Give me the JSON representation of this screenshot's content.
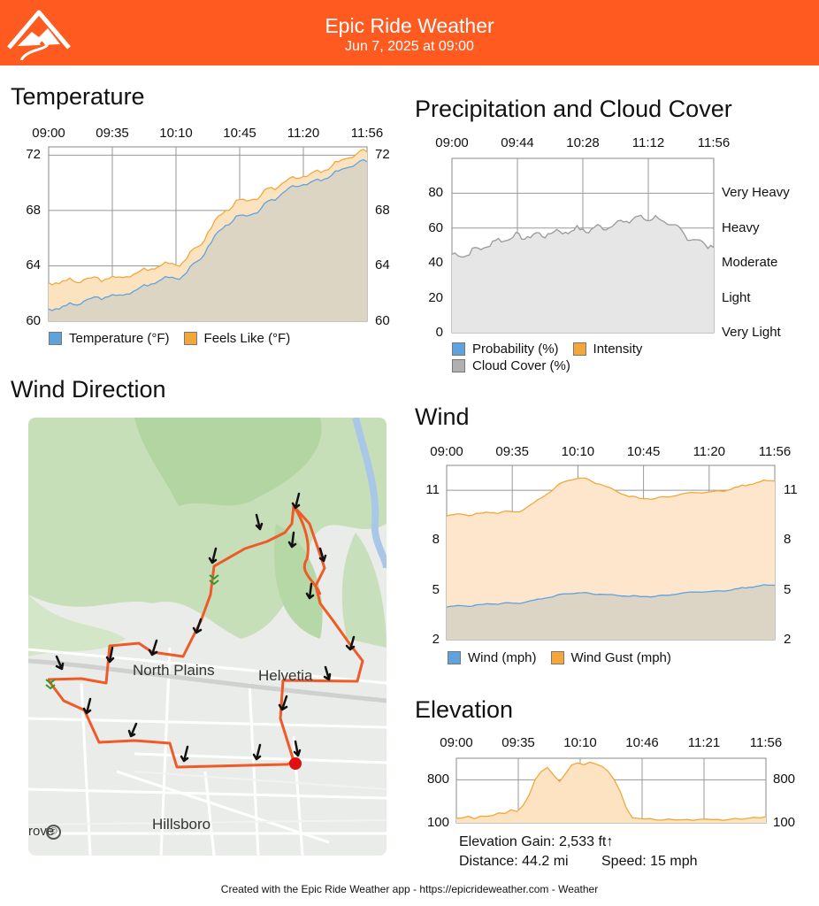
{
  "header": {
    "title": "Epic Ride Weather",
    "subtitle": "Jun 7, 2025 at 09:00",
    "bg": "#ff5a1f",
    "logo_icon": "mountain-road-logo"
  },
  "sections": {
    "temperature": "Temperature",
    "precip": "Precipitation and Cloud Cover",
    "wind_dir": "Wind Direction",
    "wind": "Wind",
    "elevation": "Elevation"
  },
  "temperature": {
    "times": [
      "09:00",
      "09:35",
      "10:10",
      "10:45",
      "11:20",
      "11:56"
    ],
    "yticks": [
      "72",
      "68",
      "64",
      "60"
    ],
    "legend": [
      "Temperature (°F)",
      "Feels Like (°F)"
    ],
    "colors": {
      "temp": "#5fa3dd",
      "feels": "#f4a63a"
    }
  },
  "precip": {
    "times": [
      "09:00",
      "09:44",
      "10:28",
      "11:12",
      "11:56"
    ],
    "yticks": [
      "80",
      "60",
      "40",
      "20",
      "0"
    ],
    "intensity_labels": [
      "Very Heavy",
      "Heavy",
      "Moderate",
      "Light",
      "Very Light"
    ],
    "legend": [
      "Probability (%)",
      "Intensity",
      "Cloud Cover (%)"
    ],
    "colors": {
      "prob": "#5fa3dd",
      "intensity": "#f4a63a",
      "cloud": "#b0b0b0"
    }
  },
  "wind": {
    "times": [
      "09:00",
      "09:35",
      "10:10",
      "10:45",
      "11:20",
      "11:56"
    ],
    "yticks": [
      "11",
      "8",
      "5",
      "2"
    ],
    "legend": [
      "Wind (mph)",
      "Wind Gust (mph)"
    ]
  },
  "elevation": {
    "times": [
      "09:00",
      "09:35",
      "10:10",
      "10:46",
      "11:21",
      "11:56"
    ],
    "yticks": [
      "800",
      "100"
    ],
    "gain": "Elevation Gain: 2,533 ft↑",
    "distance": "Distance: 44.2 mi",
    "speed": "Speed: 15 mph"
  },
  "map": {
    "labels": [
      "North Plains",
      "Helvetia",
      "Hillsboro",
      "rove"
    ],
    "route_color": "#ef5a28",
    "end_color": "#e01010"
  },
  "footer": "Created with the Epic Ride Weather app - https://epicrideweather.com -  Weather",
  "chart_data": [
    {
      "type": "area",
      "title": "Temperature",
      "ylim": [
        60,
        72.6
      ],
      "x": [
        "09:00",
        "09:35",
        "10:10",
        "10:45",
        "11:20",
        "11:56"
      ],
      "series": [
        {
          "name": "Temperature (°F)",
          "values": [
            60.9,
            61.8,
            63.2,
            67.5,
            69.9,
            71.5
          ]
        },
        {
          "name": "Feels Like (°F)",
          "values": [
            62.8,
            63.1,
            64.2,
            68.6,
            70.5,
            72.2
          ]
        }
      ]
    },
    {
      "type": "area",
      "title": "Precipitation and Cloud Cover",
      "ylim": [
        0,
        100
      ],
      "x": [
        "09:00",
        "09:44",
        "10:28",
        "11:12",
        "11:56"
      ],
      "series": [
        {
          "name": "Probability (%)",
          "values": [
            0,
            0,
            0,
            0,
            0
          ]
        },
        {
          "name": "Intensity",
          "values": [
            0,
            0,
            0,
            0,
            0
          ]
        },
        {
          "name": "Cloud Cover (%)",
          "values": [
            44,
            55,
            59,
            66,
            50
          ]
        }
      ]
    },
    {
      "type": "area",
      "title": "Wind",
      "ylim": [
        2,
        12.5
      ],
      "x": [
        "09:00",
        "09:35",
        "10:10",
        "10:45",
        "11:20",
        "11:56"
      ],
      "series": [
        {
          "name": "Wind (mph)",
          "values": [
            4.0,
            4.2,
            4.8,
            4.6,
            4.9,
            5.3
          ]
        },
        {
          "name": "Wind Gust (mph)",
          "values": [
            9.5,
            9.7,
            11.7,
            10.5,
            10.9,
            11.6
          ]
        }
      ]
    },
    {
      "type": "area",
      "title": "Elevation",
      "ylim": [
        100,
        1150
      ],
      "x": [
        "09:00",
        "09:35",
        "10:10",
        "10:46",
        "11:21",
        "11:56"
      ],
      "series": [
        {
          "name": "Elevation",
          "values": [
            190,
            200,
            1060,
            160,
            150,
            200
          ]
        }
      ]
    }
  ]
}
